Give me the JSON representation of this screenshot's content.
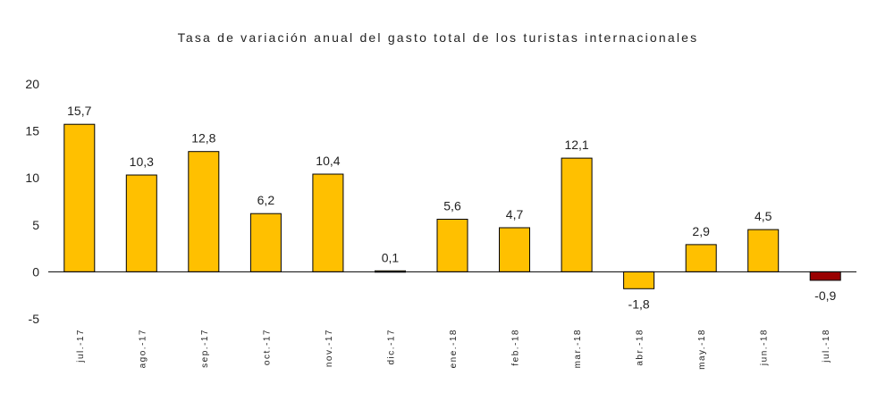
{
  "chart_data": {
    "type": "bar",
    "title": "Tasa de variación anual del gasto total de los turistas internacionales",
    "categories": [
      "jul.-17",
      "ago.-17",
      "sep.-17",
      "oct.-17",
      "nov.-17",
      "dic.-17",
      "ene.-18",
      "feb.-18",
      "mar.-18",
      "abr.-18",
      "may.-18",
      "jun.-18",
      "jul.-18"
    ],
    "values": [
      15.7,
      10.3,
      12.8,
      6.2,
      10.4,
      0.1,
      5.6,
      4.7,
      12.1,
      -1.8,
      2.9,
      4.5,
      -0.9
    ],
    "value_labels": [
      "15,7",
      "10,3",
      "12,8",
      "6,2",
      "10,4",
      "0,1",
      "5,6",
      "4,7",
      "12,1",
      "-1,8",
      "2,9",
      "4,5",
      "-0,9"
    ],
    "yticks": [
      20,
      15,
      10,
      5,
      0,
      -5
    ],
    "ylim": [
      -5,
      20
    ],
    "grid": false,
    "legend": "none",
    "colors": {
      "bar": "#FFC000",
      "highlight_bar": "#990000",
      "bar_outline": "#000000",
      "axis": "#000000"
    },
    "highlight_index": 12
  }
}
